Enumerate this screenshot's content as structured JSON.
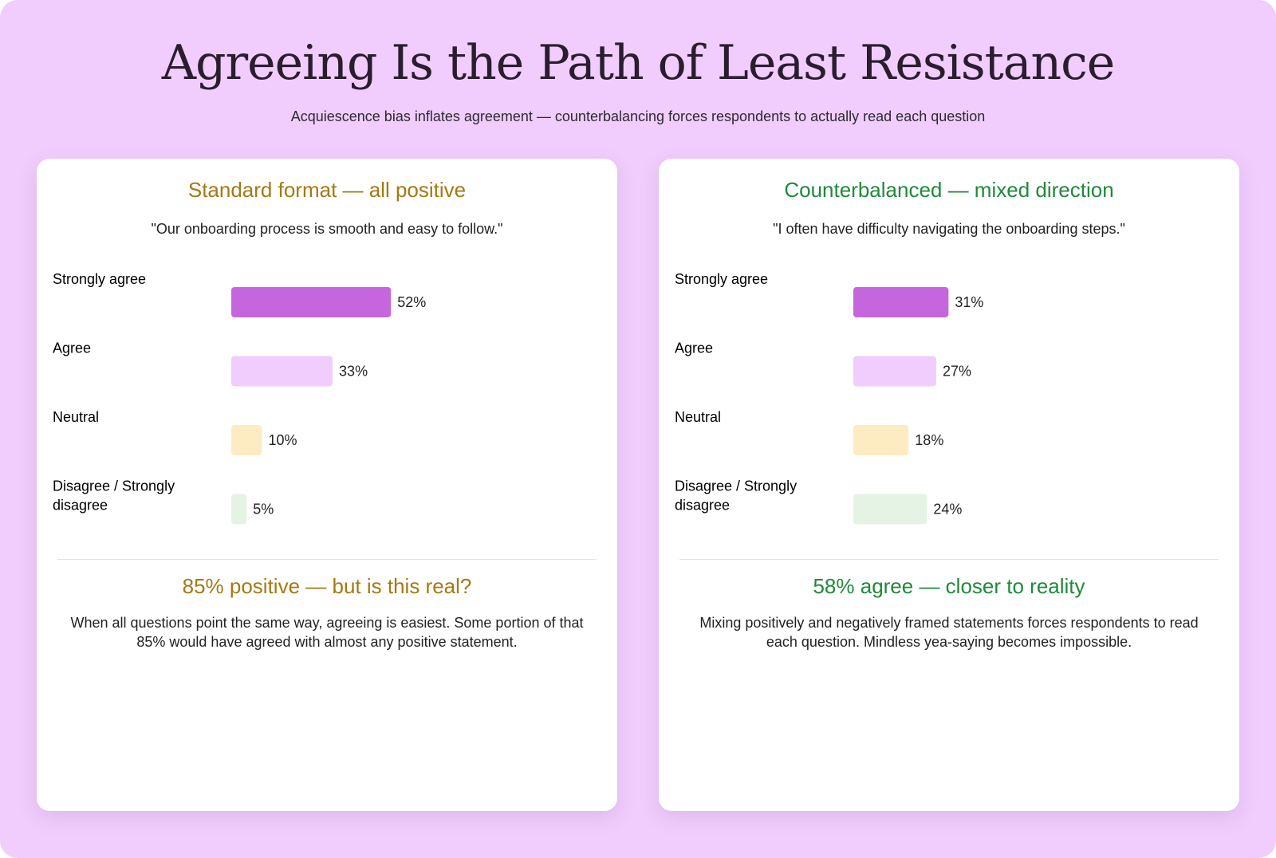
{
  "page": {
    "title": "Agreeing Is the Path of Least Resistance",
    "subtitle": "Acquiescence bias inflates agreement — counterbalancing forces respondents to actually read each question"
  },
  "colors": {
    "background": "#f0cdfc",
    "strongly_agree": "#c566de",
    "agree": "#f0cdfc",
    "neutral": "#fdecc2",
    "disagree": "#e4f3e4",
    "standard_accent": "#a57912",
    "counterbalanced_accent": "#1f8a3a"
  },
  "panels": [
    {
      "title": "Standard format — all positive",
      "statement": "\"Our onboarding process is smooth and easy to follow.\"",
      "verdict": "85% positive — but is this real?",
      "explanation": "When all questions point the same way, agreeing is easiest. Some portion of that 85% would have agreed with almost any positive statement."
    },
    {
      "title": "Counterbalanced — mixed direction",
      "statement": "\"I often have difficulty navigating the onboarding steps.\"",
      "verdict": "58% agree — closer to reality",
      "explanation": "Mixing positively and negatively framed statements forces respondents to read each question. Mindless yea-saying becomes impossible."
    }
  ],
  "chart_data": [
    {
      "type": "bar",
      "orientation": "horizontal",
      "title": "Standard format — all positive",
      "categories": [
        "Strongly agree",
        "Agree",
        "Neutral",
        "Disagree / Strongly disagree"
      ],
      "values": [
        52,
        33,
        10,
        5
      ],
      "value_labels": [
        "52%",
        "33%",
        "10%",
        "5%"
      ],
      "unit": "%",
      "xlim": [
        0,
        100
      ],
      "xlabel": "",
      "ylabel": "",
      "grid": false,
      "legend": "none"
    },
    {
      "type": "bar",
      "orientation": "horizontal",
      "title": "Counterbalanced — mixed direction",
      "categories": [
        "Strongly agree",
        "Agree",
        "Neutral",
        "Disagree / Strongly disagree"
      ],
      "values": [
        31,
        27,
        18,
        24
      ],
      "value_labels": [
        "31%",
        "27%",
        "18%",
        "24%"
      ],
      "unit": "%",
      "xlim": [
        0,
        100
      ],
      "xlabel": "",
      "ylabel": "",
      "grid": false,
      "legend": "none"
    }
  ]
}
